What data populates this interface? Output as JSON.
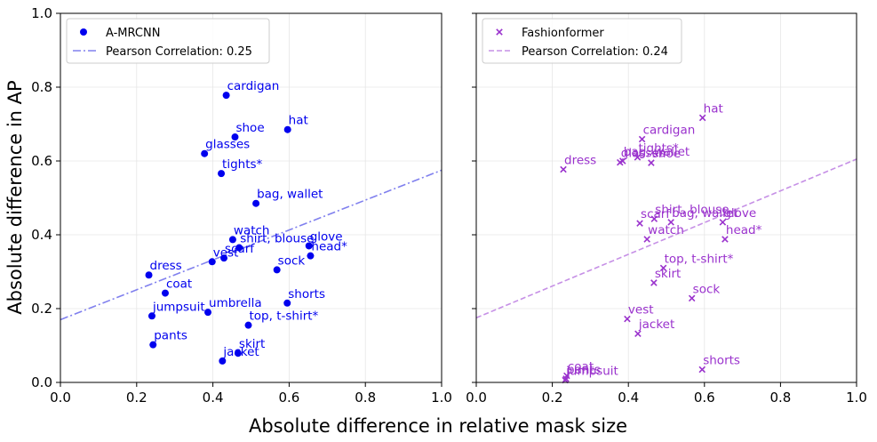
{
  "chart_data": [
    {
      "type": "scatter",
      "xlabel": "Absolute difference in relative mask size",
      "ylabel": "Absolute difference in AP",
      "xlim": [
        0.0,
        1.0
      ],
      "ylim": [
        0.0,
        1.0
      ],
      "xticks": [
        "0.0",
        "0.2",
        "0.4",
        "0.6",
        "0.8",
        "1.0"
      ],
      "yticks": [
        "0.0",
        "0.2",
        "0.4",
        "0.6",
        "0.8",
        "1.0"
      ],
      "grid": true,
      "legend_position": "top-left",
      "marker": "circle",
      "color": "#0000ee",
      "trend_color": "#8080ee",
      "series_name": "A-MRCNN",
      "trend_label": "Pearson Correlation: 0.25",
      "trend": {
        "x": [
          0.0,
          1.0
        ],
        "y": [
          0.17,
          0.575
        ]
      },
      "points": [
        {
          "label": "cardigan",
          "x": 0.435,
          "y": 0.778
        },
        {
          "label": "hat",
          "x": 0.596,
          "y": 0.685
        },
        {
          "label": "shoe",
          "x": 0.458,
          "y": 0.665
        },
        {
          "label": "glasses",
          "x": 0.378,
          "y": 0.62
        },
        {
          "label": "tights*",
          "x": 0.422,
          "y": 0.566
        },
        {
          "label": "bag, wallet",
          "x": 0.513,
          "y": 0.485
        },
        {
          "label": "watch",
          "x": 0.452,
          "y": 0.387
        },
        {
          "label": "shirt, blouse",
          "x": 0.469,
          "y": 0.365
        },
        {
          "label": "glove",
          "x": 0.652,
          "y": 0.37
        },
        {
          "label": "head*",
          "x": 0.656,
          "y": 0.343
        },
        {
          "label": "scarf",
          "x": 0.429,
          "y": 0.337
        },
        {
          "label": "vest",
          "x": 0.398,
          "y": 0.327
        },
        {
          "label": "sock",
          "x": 0.568,
          "y": 0.305
        },
        {
          "label": "dress",
          "x": 0.232,
          "y": 0.291
        },
        {
          "label": "coat",
          "x": 0.275,
          "y": 0.242
        },
        {
          "label": "shorts",
          "x": 0.595,
          "y": 0.215
        },
        {
          "label": "jumpsuit",
          "x": 0.24,
          "y": 0.18
        },
        {
          "label": "umbrella",
          "x": 0.387,
          "y": 0.19
        },
        {
          "label": "top, t-shirt*",
          "x": 0.493,
          "y": 0.155
        },
        {
          "label": "pants",
          "x": 0.243,
          "y": 0.102
        },
        {
          "label": "skirt",
          "x": 0.466,
          "y": 0.079
        },
        {
          "label": "jacket",
          "x": 0.425,
          "y": 0.058
        }
      ]
    },
    {
      "type": "scatter",
      "xlabel": "Absolute difference in relative mask size",
      "ylabel": "",
      "xlim": [
        0.0,
        1.0
      ],
      "ylim": [
        0.0,
        1.0
      ],
      "xticks": [
        "0.0",
        "0.2",
        "0.4",
        "0.6",
        "0.8",
        "1.0"
      ],
      "yticks": [],
      "grid": true,
      "legend_position": "top-left",
      "marker": "x",
      "color": "#9a32cd",
      "trend_color": "#c690e6",
      "series_name": "Fashionformer",
      "trend_label": "Pearson Correlation: 0.24",
      "trend": {
        "x": [
          0.0,
          1.0
        ],
        "y": [
          0.175,
          0.605
        ]
      },
      "points": [
        {
          "label": "hat",
          "x": 0.595,
          "y": 0.717
        },
        {
          "label": "cardigan",
          "x": 0.436,
          "y": 0.659
        },
        {
          "label": "tights*",
          "x": 0.424,
          "y": 0.61
        },
        {
          "label": "glasses",
          "x": 0.378,
          "y": 0.596
        },
        {
          "label": "bag, wallet",
          "x": 0.385,
          "y": 0.6
        },
        {
          "label": "shoe",
          "x": 0.46,
          "y": 0.595
        },
        {
          "label": "dress",
          "x": 0.229,
          "y": 0.577
        },
        {
          "label": "shirt, blouse",
          "x": 0.468,
          "y": 0.443
        },
        {
          "label": "scarf",
          "x": 0.43,
          "y": 0.431
        },
        {
          "label": "bag, wallet",
          "x": 0.512,
          "y": 0.434
        },
        {
          "label": "glove",
          "x": 0.648,
          "y": 0.434
        },
        {
          "label": "watch",
          "x": 0.449,
          "y": 0.388
        },
        {
          "label": "head*",
          "x": 0.654,
          "y": 0.388
        },
        {
          "label": "top, t-shirt*",
          "x": 0.492,
          "y": 0.31
        },
        {
          "label": "skirt",
          "x": 0.467,
          "y": 0.27
        },
        {
          "label": "sock",
          "x": 0.567,
          "y": 0.228
        },
        {
          "label": "vest",
          "x": 0.397,
          "y": 0.172
        },
        {
          "label": "jacket",
          "x": 0.425,
          "y": 0.132
        },
        {
          "label": "shorts",
          "x": 0.594,
          "y": 0.035
        },
        {
          "label": "coat",
          "x": 0.238,
          "y": 0.018
        },
        {
          "label": "pants",
          "x": 0.236,
          "y": 0.01
        },
        {
          "label": "jumpsuit",
          "x": 0.234,
          "y": 0.006
        }
      ]
    }
  ]
}
